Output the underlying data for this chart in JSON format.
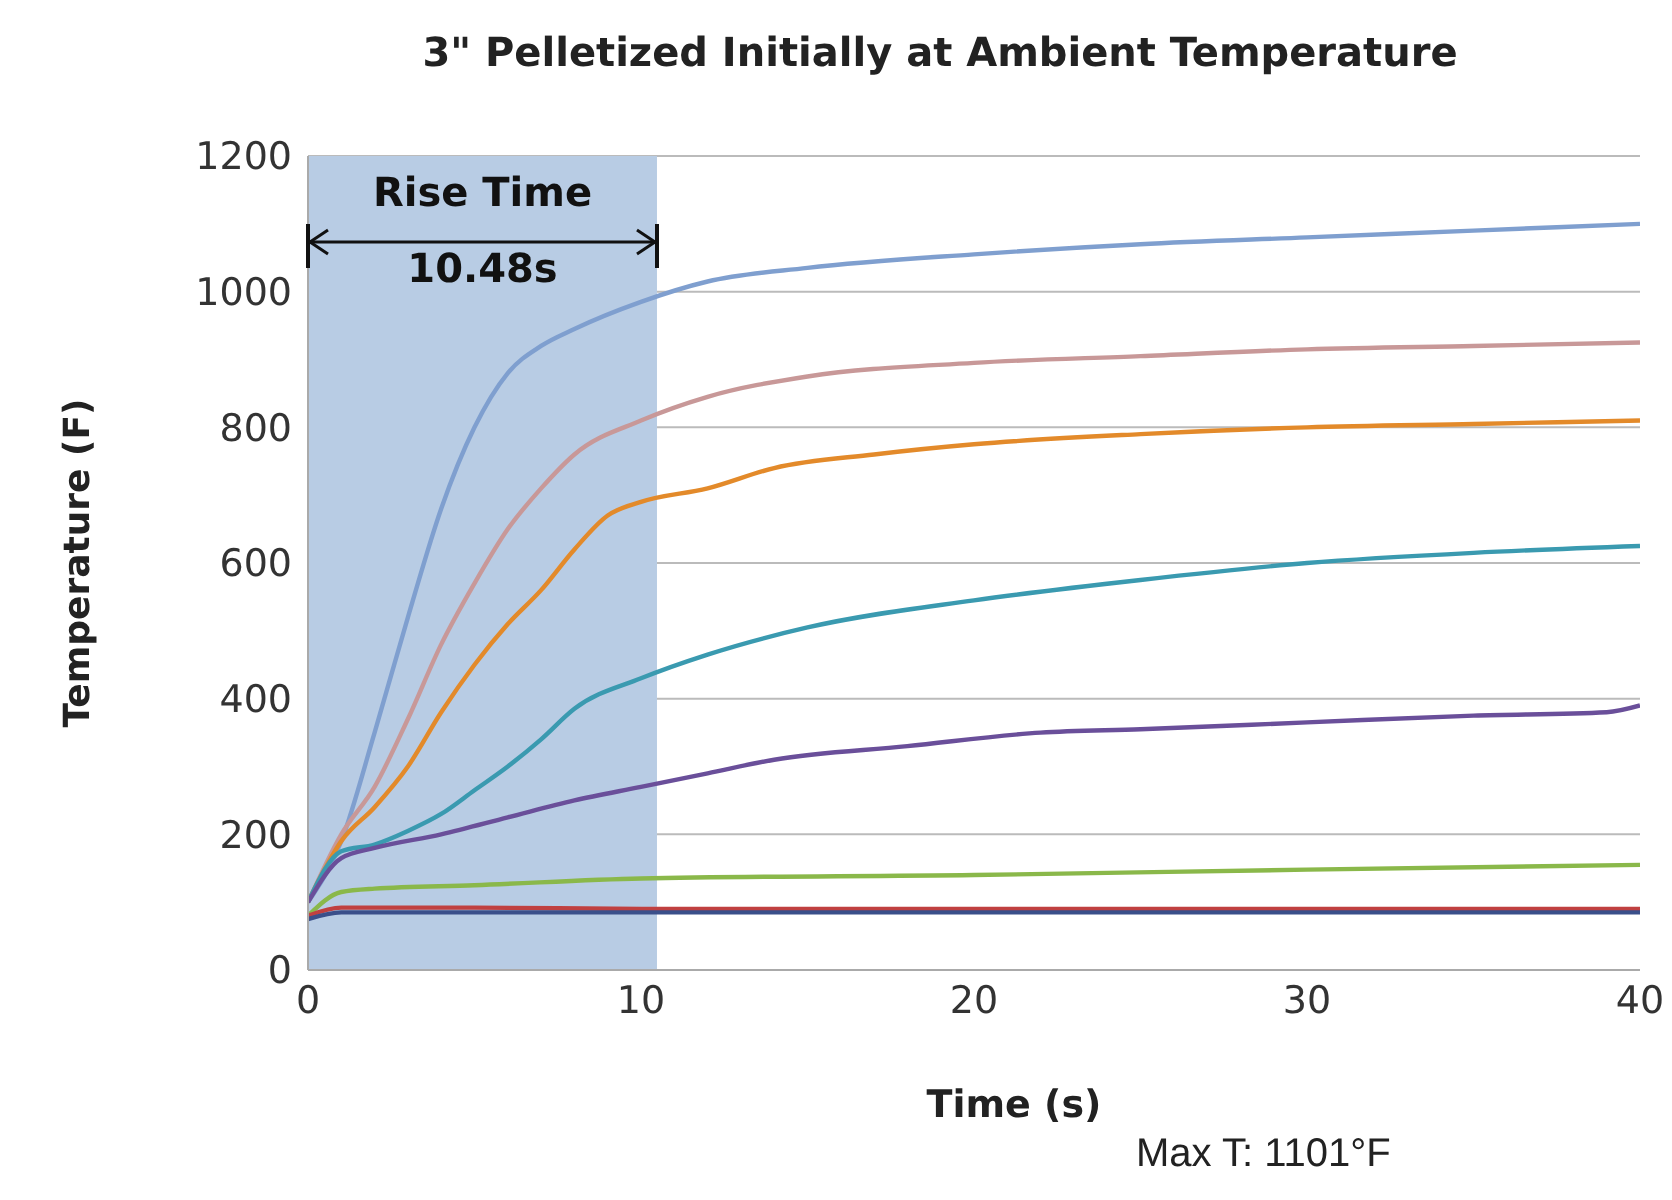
{
  "chart_data": {
    "type": "line",
    "title": "3\" Pelletized Initially at Ambient Temperature",
    "xlabel": "Time (s)",
    "ylabel": "Temperature (F)",
    "xlim": [
      0,
      40
    ],
    "xticks": [
      0,
      10,
      20,
      30,
      40
    ],
    "ylim": [
      0,
      1200
    ],
    "yticks": [
      0,
      200,
      400,
      600,
      800,
      1000,
      1200
    ],
    "grid": "y",
    "marker": "none",
    "line_style": "solid",
    "bands": [
      {
        "axis": "x",
        "from": 0,
        "to": 10.48,
        "label": "Rise Time",
        "color": "#b8cce4"
      }
    ],
    "annotations": [
      "10.48s",
      "Max T: 1101°F"
    ],
    "series": [
      {
        "color": "#7f9fcf",
        "x": [
          0,
          1,
          2,
          3,
          4,
          5,
          6,
          7,
          8,
          10,
          12,
          15,
          20,
          25,
          30,
          35,
          40
        ],
        "values": [
          100,
          190,
          350,
          520,
          680,
          800,
          880,
          920,
          945,
          985,
          1015,
          1035,
          1055,
          1070,
          1080,
          1090,
          1100
        ]
      },
      {
        "color": "#c89898",
        "x": [
          0,
          1,
          2,
          3,
          4,
          5,
          6,
          7,
          8,
          10,
          12,
          15,
          20,
          25,
          30,
          35,
          40
        ],
        "values": [
          100,
          200,
          270,
          370,
          480,
          570,
          650,
          710,
          760,
          810,
          845,
          875,
          895,
          905,
          915,
          920,
          925
        ]
      },
      {
        "color": "#e38a2a",
        "x": [
          0,
          1,
          2,
          3,
          4,
          5,
          6,
          7,
          8,
          9,
          10,
          12,
          14,
          17,
          20,
          25,
          30,
          35,
          40
        ],
        "values": [
          100,
          190,
          240,
          300,
          380,
          450,
          510,
          560,
          620,
          670,
          690,
          710,
          740,
          760,
          775,
          790,
          800,
          805,
          810
        ]
      },
      {
        "color": "#3a9ab0",
        "x": [
          0,
          1,
          2,
          3,
          4,
          5,
          6,
          7,
          8,
          10,
          12,
          15,
          20,
          25,
          30,
          35,
          40
        ],
        "values": [
          100,
          175,
          185,
          205,
          230,
          265,
          300,
          340,
          385,
          430,
          465,
          505,
          545,
          575,
          600,
          615,
          625
        ]
      },
      {
        "color": "#6a4f9a",
        "x": [
          0,
          1,
          2,
          4,
          6,
          8,
          10,
          12,
          14,
          18,
          22,
          25,
          30,
          35,
          39,
          40
        ],
        "values": [
          100,
          165,
          180,
          200,
          225,
          250,
          270,
          290,
          310,
          330,
          350,
          355,
          365,
          375,
          380,
          390
        ]
      },
      {
        "color": "#8ab84a",
        "x": [
          0,
          1,
          2,
          5,
          10,
          20,
          30,
          40
        ],
        "values": [
          80,
          115,
          120,
          125,
          135,
          140,
          148,
          155
        ]
      },
      {
        "color": "#c04040",
        "x": [
          0,
          1,
          5,
          10,
          20,
          30,
          40
        ],
        "values": [
          80,
          92,
          92,
          90,
          90,
          90,
          90
        ]
      },
      {
        "color": "#3a4f8a",
        "x": [
          0,
          1,
          5,
          10,
          20,
          30,
          40
        ],
        "values": [
          75,
          85,
          85,
          85,
          85,
          85,
          85
        ]
      }
    ]
  }
}
